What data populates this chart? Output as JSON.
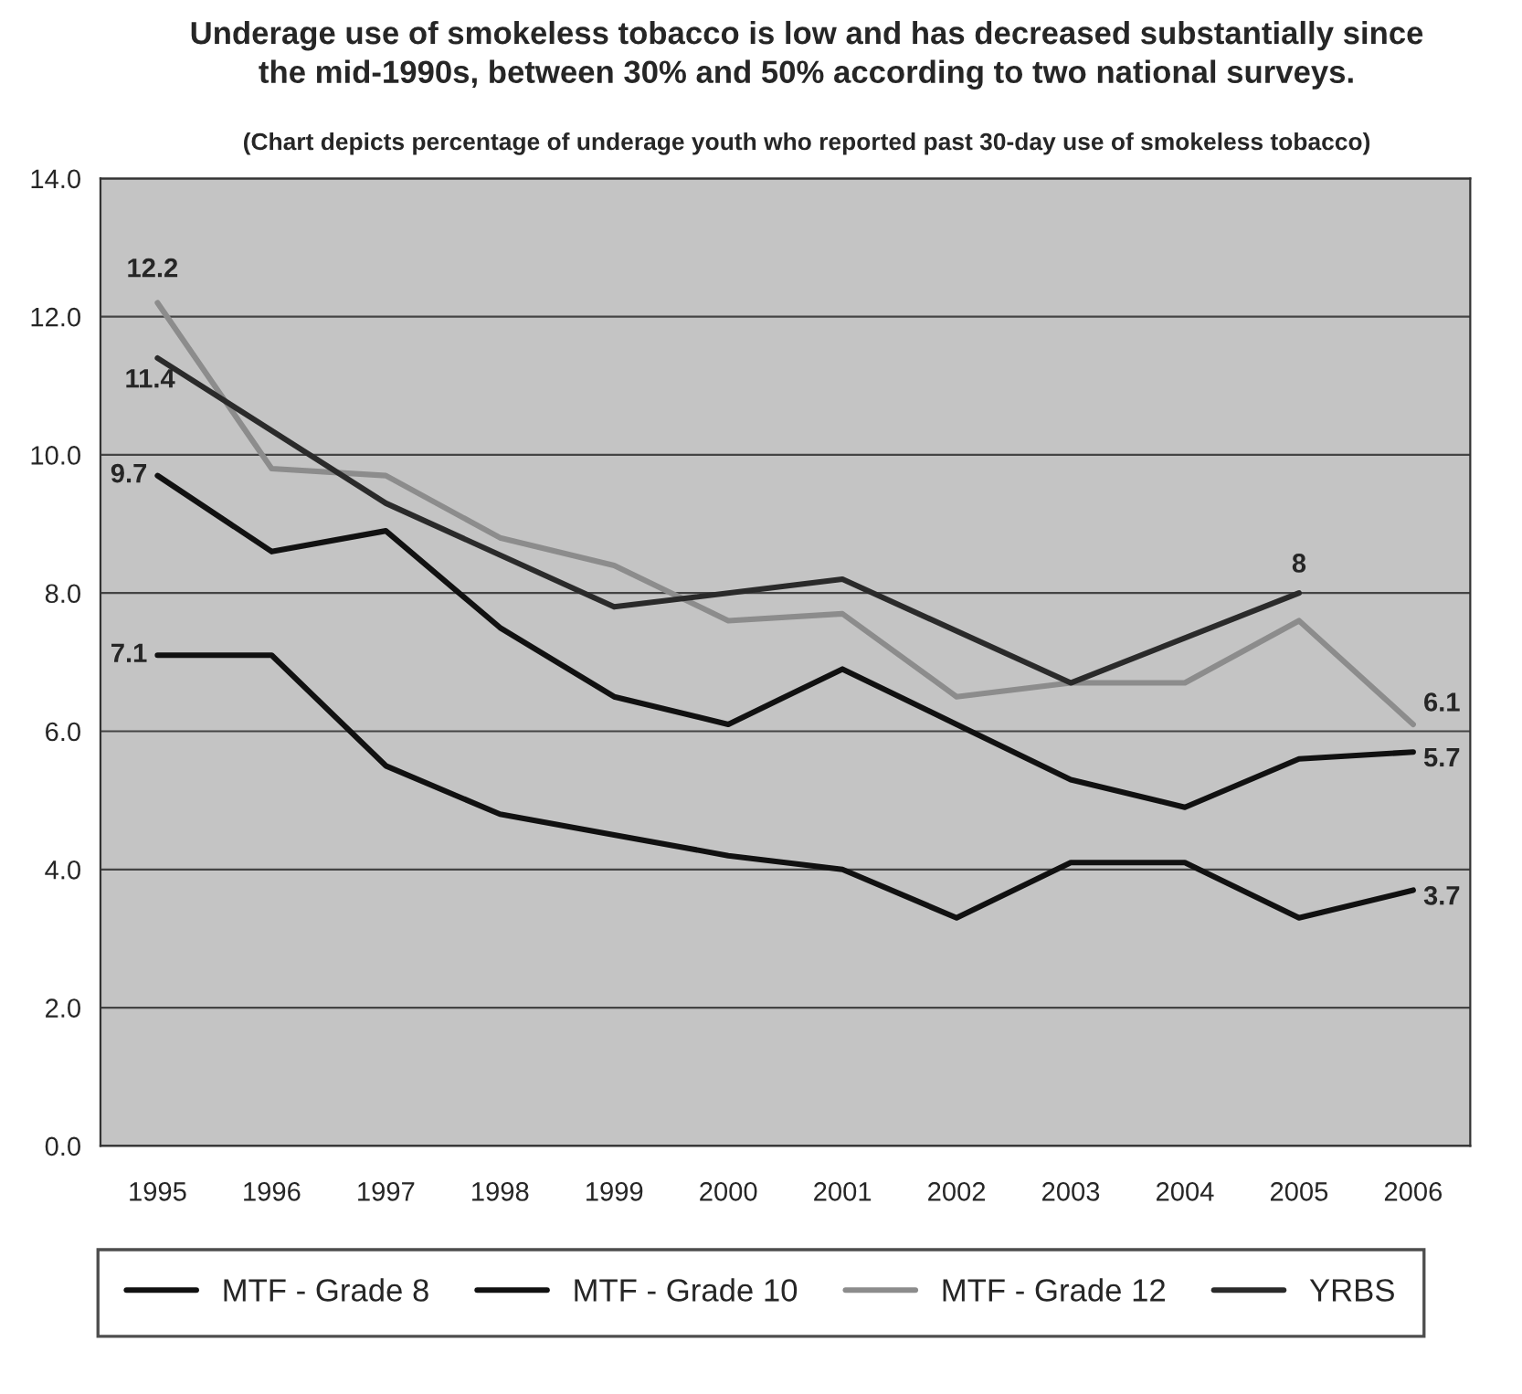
{
  "chart_data": {
    "type": "line",
    "title": "Underage use of smokeless tobacco is low and has decreased substantially since\nthe mid-1990s, between 30% and 50% according to two national surveys.",
    "subtitle": "(Chart depicts percentage of underage youth who reported past 30-day use of smokeless tobacco)",
    "categories": [
      "1995",
      "1996",
      "1997",
      "1998",
      "1999",
      "2000",
      "2001",
      "2002",
      "2003",
      "2004",
      "2005",
      "2006"
    ],
    "series": [
      {
        "name": "MTF - Grade 8",
        "color": "#111111",
        "values": [
          7.1,
          7.1,
          5.5,
          4.8,
          4.5,
          4.2,
          4.0,
          3.3,
          4.1,
          4.1,
          3.3,
          3.7
        ],
        "value_labels": [
          "7.1",
          null,
          null,
          null,
          null,
          null,
          null,
          null,
          null,
          null,
          null,
          "3.7"
        ]
      },
      {
        "name": "MTF - Grade 10",
        "color": "#111111",
        "values": [
          9.7,
          8.6,
          8.9,
          7.5,
          6.5,
          6.1,
          6.9,
          6.1,
          5.3,
          4.9,
          5.6,
          5.7
        ],
        "value_labels": [
          "9.7",
          null,
          null,
          null,
          null,
          null,
          null,
          null,
          null,
          null,
          null,
          "5.7"
        ]
      },
      {
        "name": "MTF - Grade 12",
        "color": "#8c8c8c",
        "values": [
          12.2,
          9.8,
          9.7,
          8.8,
          8.4,
          7.6,
          7.7,
          6.5,
          6.7,
          6.7,
          7.6,
          6.1
        ],
        "value_labels": [
          "12.2",
          null,
          null,
          null,
          null,
          null,
          null,
          null,
          null,
          null,
          null,
          "6.1"
        ]
      },
      {
        "name": "YRBS",
        "color": "#2a2a2a",
        "values": [
          11.4,
          null,
          9.3,
          null,
          7.8,
          null,
          8.2,
          null,
          6.7,
          null,
          8.0,
          null
        ],
        "value_labels": [
          "11.4",
          null,
          null,
          null,
          null,
          null,
          null,
          null,
          null,
          null,
          "8",
          null
        ]
      }
    ],
    "ylim": [
      0,
      14
    ],
    "yticks": [
      {
        "value": 0,
        "label": "0.0"
      },
      {
        "value": 2,
        "label": "2.0"
      },
      {
        "value": 4,
        "label": "4.0"
      },
      {
        "value": 6,
        "label": "6.0"
      },
      {
        "value": 8,
        "label": "8.0"
      },
      {
        "value": 10,
        "label": "10.0"
      },
      {
        "value": 12,
        "label": "12.0"
      },
      {
        "value": 14,
        "label": "14.0"
      }
    ],
    "grid": "y",
    "legend": "bottom",
    "marker": "none",
    "line_style": "solid"
  }
}
